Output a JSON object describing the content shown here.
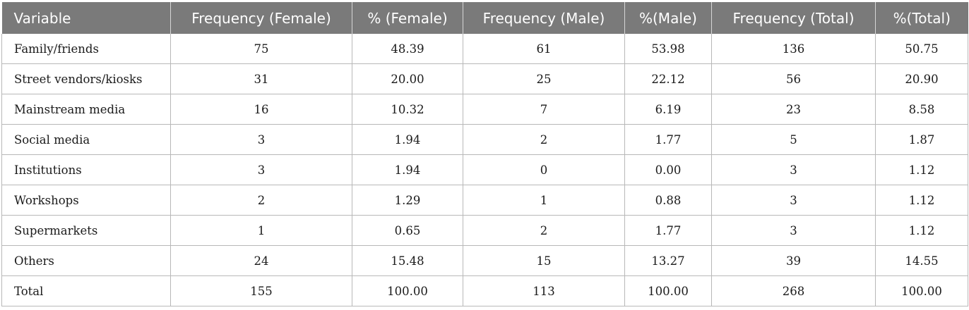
{
  "table": {
    "headers": [
      "Variable",
      "Frequency (Female)",
      "% (Female)",
      "Frequency (Male)",
      "%(Male)",
      "Frequency (Total)",
      "%(Total)"
    ],
    "rows": [
      [
        "Family/friends",
        "75",
        "48.39",
        "61",
        "53.98",
        "136",
        "50.75"
      ],
      [
        "Street vendors/kiosks",
        "31",
        "20.00",
        "25",
        "22.12",
        "56",
        "20.90"
      ],
      [
        "Mainstream media",
        "16",
        "10.32",
        "7",
        "6.19",
        "23",
        "8.58"
      ],
      [
        "Social media",
        "3",
        "1.94",
        "2",
        "1.77",
        "5",
        "1.87"
      ],
      [
        "Institutions",
        "3",
        "1.94",
        "0",
        "0.00",
        "3",
        "1.12"
      ],
      [
        "Workshops",
        "2",
        "1.29",
        "1",
        "0.88",
        "3",
        "1.12"
      ],
      [
        "Supermarkets",
        "1",
        "0.65",
        "2",
        "1.77",
        "3",
        "1.12"
      ],
      [
        "Others",
        "24",
        "15.48",
        "15",
        "13.27",
        "39",
        "14.55"
      ],
      [
        "Total",
        "155",
        "100.00",
        "113",
        "100.00",
        "268",
        "100.00"
      ]
    ]
  },
  "colors": {
    "header_bg": "#7a7a7a",
    "header_text": "#ffffff",
    "grid": "#b8b8b8"
  }
}
